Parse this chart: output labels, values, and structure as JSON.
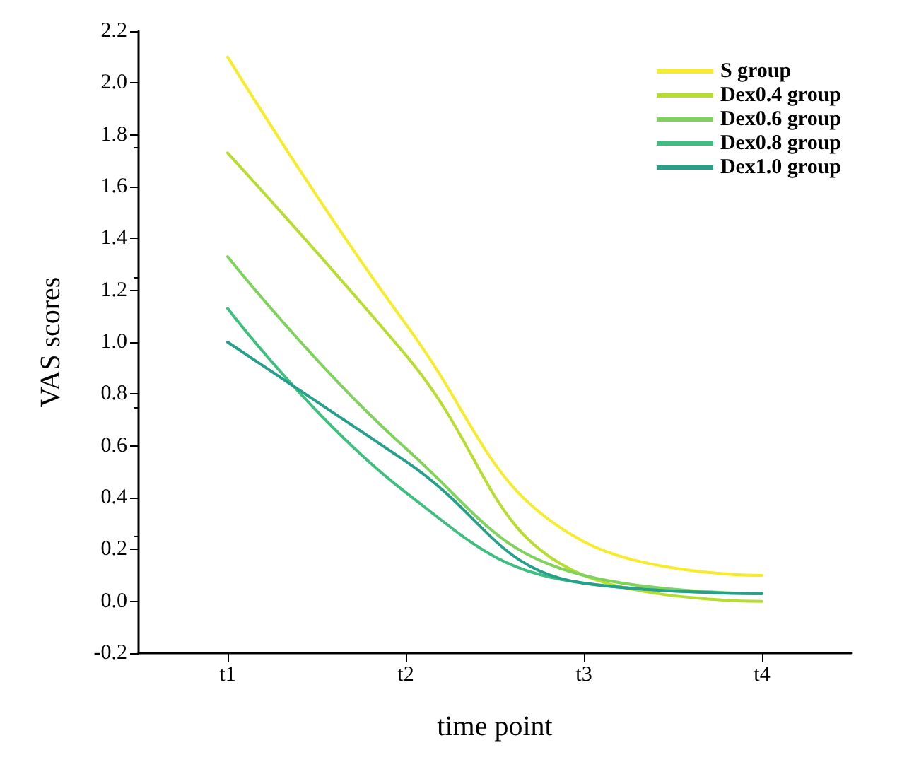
{
  "chart_data": {
    "type": "line",
    "xlabel": "time point",
    "ylabel": "VAS scores",
    "categories": [
      "t1",
      "t2",
      "t3",
      "t4"
    ],
    "series": [
      {
        "name": "S group",
        "color": "#f7ec2a",
        "values": [
          2.1,
          1.07,
          0.23,
          0.1
        ]
      },
      {
        "name": "Dex0.4 group",
        "color": "#b7dd2f",
        "values": [
          1.73,
          0.95,
          0.1,
          0.0
        ]
      },
      {
        "name": "Dex0.6 group",
        "color": "#7fd35c",
        "values": [
          1.33,
          0.59,
          0.1,
          0.03
        ]
      },
      {
        "name": "Dex0.8 group",
        "color": "#3fbf7f",
        "values": [
          1.13,
          0.42,
          0.07,
          0.03
        ]
      },
      {
        "name": "Dex1.0 group",
        "color": "#26a08a",
        "values": [
          1.0,
          0.54,
          0.07,
          0.03
        ]
      }
    ],
    "ylim": [
      -0.2,
      2.2
    ],
    "yticks": [
      -0.2,
      {
        "value": 0,
        "label": "0.0"
      },
      0.2,
      0.4,
      0.6,
      0.8,
      {
        "value": 1,
        "label": "1.0"
      },
      1.2,
      1.4,
      1.6,
      1.8,
      {
        "value": 2,
        "label": "2.0"
      },
      2.2
    ],
    "legend": "top right",
    "marker": "none",
    "line_style": "solid"
  }
}
